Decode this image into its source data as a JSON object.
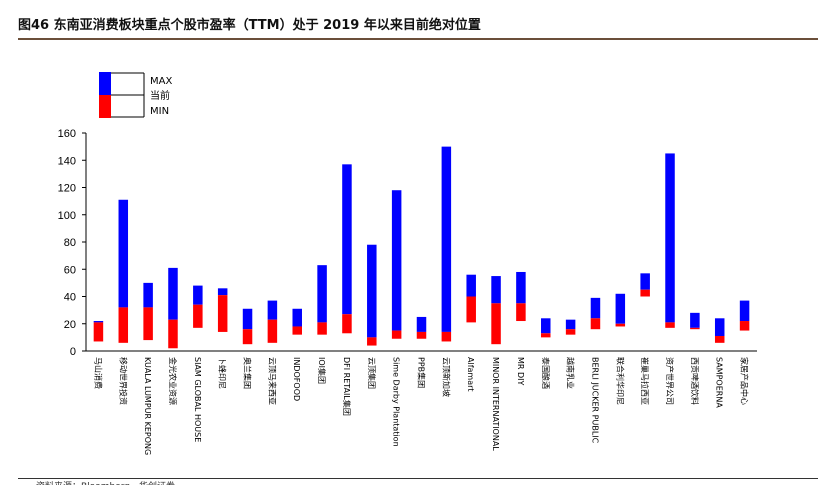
{
  "title": "图46 东南亚消费板块重点个股市盈率（TTM）处于 2019 年以来目前绝对位置",
  "footer": "资料来源：Bloomberg，华创证券",
  "colors": {
    "range_upper": "#0000ff",
    "range_lower": "#ff0000",
    "axis": "#000000"
  },
  "chart_data": {
    "type": "bar",
    "subtype": "floating-range",
    "legend": [
      "MAX",
      "当前",
      "MIN"
    ],
    "legend_position": "top-left",
    "ylim": [
      0,
      160
    ],
    "yticks": [
      0,
      20,
      40,
      60,
      80,
      100,
      120,
      140,
      160
    ],
    "grid": false,
    "categories": [
      "马山消费",
      "移动世界投资",
      "KUALA LUMPUR KEPONG",
      "金光农业资源",
      "SIAM GLOBAL HOUSE",
      "卜蜂印尼",
      "奥兰集团",
      "云顶马来西亚",
      "INDOFOOD",
      "IOI集团",
      "DFI RETAIL集团",
      "云顶集团",
      "Sime Darby Plantation",
      "PPB集团",
      "云顶新加坡",
      "Alfamart",
      "MINOR INTERNATIONAL",
      "MR DIY",
      "泰国酿酒",
      "越南乳业",
      "BERLI JUCKER PUBLIC",
      "联合利华印尼",
      "崔巢马拉西亚",
      "资产世界公司",
      "西贡啤酒饮料",
      "SAMPOERNA",
      "家居产品中心"
    ],
    "series": [
      {
        "name": "MAX",
        "values": [
          22,
          111,
          50,
          61,
          48,
          46,
          31,
          37,
          31,
          63,
          137,
          78,
          118,
          25,
          150,
          56,
          55,
          58,
          24,
          23,
          39,
          42,
          57,
          145,
          28,
          24,
          37
        ]
      },
      {
        "name": "当前",
        "values": [
          21,
          32,
          32,
          23,
          34,
          41,
          16,
          23,
          18,
          21,
          27,
          10,
          15,
          14,
          14,
          40,
          35,
          35,
          13,
          16,
          24,
          20,
          45,
          21,
          17,
          11,
          22
        ]
      },
      {
        "name": "MIN",
        "values": [
          7,
          6,
          8,
          2,
          17,
          14,
          5,
          6,
          12,
          12,
          13,
          4,
          9,
          9,
          7,
          21,
          5,
          22,
          10,
          12,
          16,
          18,
          40,
          17,
          16,
          6,
          15
        ]
      }
    ]
  }
}
